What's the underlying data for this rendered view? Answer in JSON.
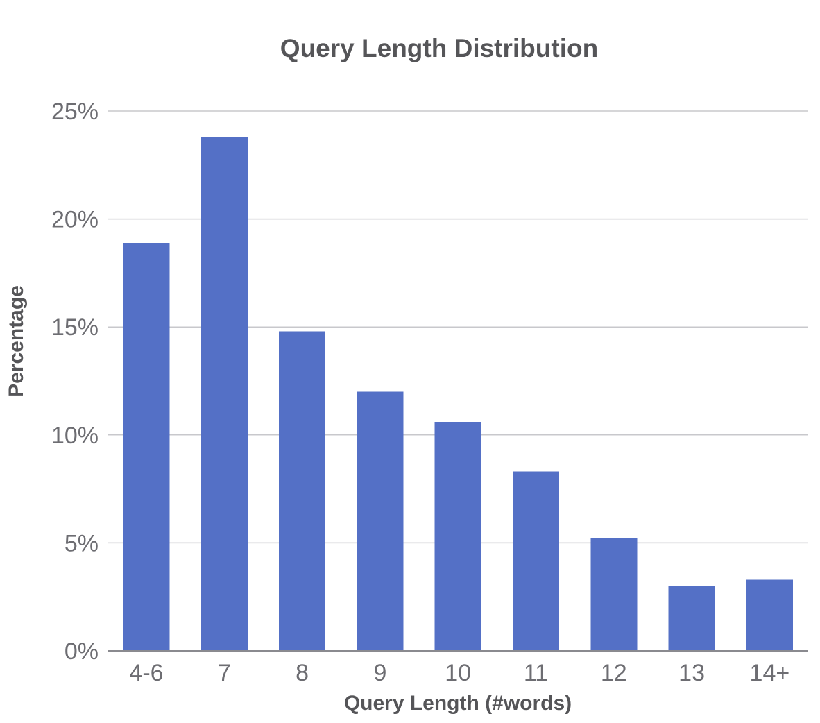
{
  "chart_data": {
    "type": "bar",
    "title": "Query Length Distribution",
    "xlabel": "Query Length (#words)",
    "ylabel": "Percentage",
    "categories": [
      "4-6",
      "7",
      "8",
      "9",
      "10",
      "11",
      "12",
      "13",
      "14+"
    ],
    "values": [
      18.9,
      23.8,
      14.8,
      12.0,
      10.6,
      8.3,
      5.2,
      3.0,
      3.3
    ],
    "ylim": [
      0,
      25
    ],
    "yticks": [
      {
        "value": 0,
        "label": "0%"
      },
      {
        "value": 5,
        "label": "5%"
      },
      {
        "value": 10,
        "label": "10%"
      },
      {
        "value": 15,
        "label": "15%"
      },
      {
        "value": 20,
        "label": "20%"
      },
      {
        "value": 25,
        "label": "25%"
      }
    ],
    "grid": true,
    "bar_color": "#5470c6",
    "gridline_color": "#c8c8cc",
    "text_color": "#555558"
  }
}
